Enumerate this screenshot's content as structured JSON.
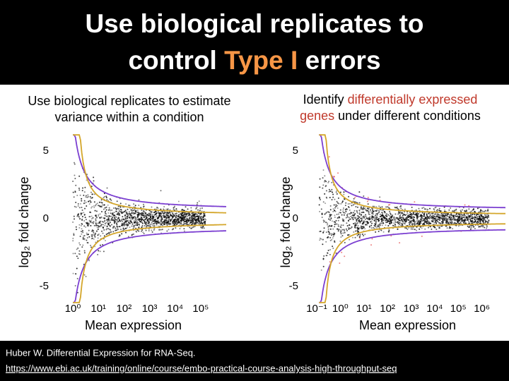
{
  "title": {
    "line1": "Use biological replicates to",
    "line2_before": "control",
    "line2_highlight": "Type I",
    "line2_after": "errors"
  },
  "panels": [
    {
      "caption": [
        "Use biological replicates to estimate",
        "variance within a condition"
      ],
      "chart": {
        "type": "scatter",
        "ylabel": "log₂ fold change",
        "xlabel": "Mean expression",
        "log_x": true,
        "xlim": [
          -0.5,
          6
        ],
        "ylim": [
          -6,
          6
        ],
        "yticks": [
          -5,
          0,
          5
        ],
        "xticks": [
          {
            "value": 0,
            "label": "10⁰"
          },
          {
            "value": 1,
            "label": "10¹"
          },
          {
            "value": 2,
            "label": "10²"
          },
          {
            "value": 3,
            "label": "10³"
          },
          {
            "value": 4,
            "label": "10⁴"
          },
          {
            "value": 5,
            "label": "10⁵"
          }
        ]
      }
    },
    {
      "caption": [
        "Identify",
        "differentially expressed",
        "genes",
        "under different conditions"
      ],
      "chart": {
        "type": "scatter",
        "ylabel": "log₂ fold change",
        "xlabel": "Mean expression",
        "log_x": true,
        "xlim": [
          -1.3,
          7
        ],
        "ylim": [
          -6,
          6
        ],
        "yticks": [
          -5,
          0,
          5
        ],
        "xticks": [
          {
            "value": -1,
            "label": "10⁻¹"
          },
          {
            "value": 0,
            "label": "10⁰"
          },
          {
            "value": 1,
            "label": "10¹"
          },
          {
            "value": 2,
            "label": "10²"
          },
          {
            "value": 3,
            "label": "10³"
          },
          {
            "value": 4,
            "label": "10⁴"
          },
          {
            "value": 5,
            "label": "10⁵"
          },
          {
            "value": 6,
            "label": "10⁶"
          }
        ]
      }
    }
  ],
  "footer": {
    "citation": "Huber W. Differential Expression for RNA-Seq.",
    "link": "https://www.ebi.ac.uk/training/online/course/embo-practical-course-analysis-high-throughput-seq"
  }
}
